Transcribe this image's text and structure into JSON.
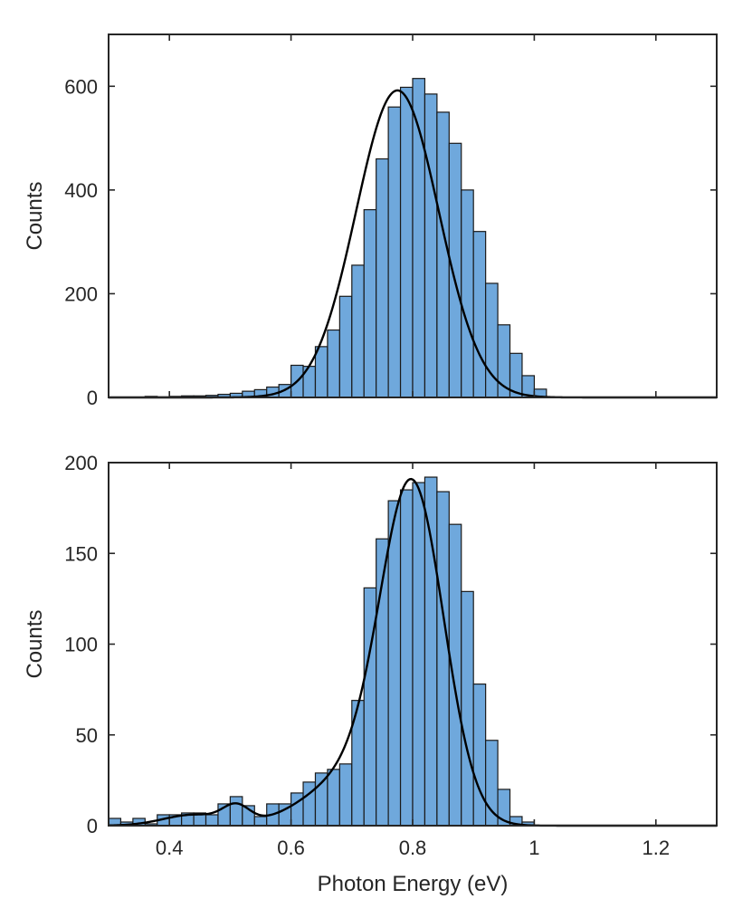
{
  "colors": {
    "bar_fill": "#6fa8dc",
    "bar_edge": "#1a1a1a",
    "fit_line": "#000000",
    "axis": "#262626"
  },
  "chart_data": [
    {
      "type": "bar",
      "subtype": "histogram-with-fit",
      "xlabel": "",
      "ylabel": "Counts",
      "xlim": [
        0.3,
        1.3
      ],
      "ylim": [
        0,
        700
      ],
      "xticks": [
        0.4,
        0.6,
        0.8,
        1.0,
        1.2
      ],
      "xtick_labels": [],
      "yticks": [
        0,
        200,
        400,
        600
      ],
      "ytick_labels": [
        "0",
        "200",
        "400",
        "600"
      ],
      "bin_width": 0.02,
      "bin_left_edges": [
        0.36,
        0.38,
        0.4,
        0.42,
        0.44,
        0.46,
        0.48,
        0.5,
        0.52,
        0.54,
        0.56,
        0.58,
        0.6,
        0.62,
        0.64,
        0.66,
        0.68,
        0.7,
        0.72,
        0.74,
        0.76,
        0.78,
        0.8,
        0.82,
        0.84,
        0.86,
        0.88,
        0.9,
        0.92,
        0.94,
        0.96,
        0.98,
        1.0
      ],
      "values": [
        2,
        1,
        2,
        3,
        3,
        4,
        6,
        8,
        12,
        15,
        20,
        25,
        62,
        60,
        98,
        130,
        195,
        255,
        362,
        460,
        560,
        598,
        615,
        585,
        550,
        490,
        400,
        320,
        220,
        140,
        85,
        42,
        16
      ],
      "fit": {
        "type": "gaussian",
        "amplitude": 592,
        "center": 0.775,
        "sigma": 0.068
      },
      "grid": false,
      "legend": "none"
    },
    {
      "type": "bar",
      "subtype": "histogram-with-fit",
      "xlabel": "Photon Energy (eV)",
      "ylabel": "Counts",
      "xlim": [
        0.3,
        1.3
      ],
      "ylim": [
        0,
        200
      ],
      "xticks": [
        0.4,
        0.6,
        0.8,
        1.0,
        1.2
      ],
      "xtick_labels": [
        "0.4",
        "0.6",
        "0.8",
        "1",
        "1.2"
      ],
      "yticks": [
        0,
        50,
        100,
        150,
        200
      ],
      "ytick_labels": [
        "0",
        "50",
        "100",
        "150",
        "200"
      ],
      "bin_width": 0.02,
      "bin_left_edges": [
        0.3,
        0.32,
        0.34,
        0.36,
        0.38,
        0.4,
        0.42,
        0.44,
        0.46,
        0.48,
        0.5,
        0.52,
        0.54,
        0.56,
        0.58,
        0.6,
        0.62,
        0.64,
        0.66,
        0.68,
        0.7,
        0.72,
        0.74,
        0.76,
        0.78,
        0.8,
        0.82,
        0.84,
        0.86,
        0.88,
        0.9,
        0.92,
        0.94,
        0.96,
        0.98
      ],
      "values": [
        4,
        2,
        4,
        1,
        6,
        6,
        7,
        7,
        6,
        12,
        16,
        11,
        5,
        12,
        12,
        18,
        24,
        29,
        31,
        34,
        69,
        131,
        158,
        179,
        185,
        189,
        192,
        184,
        166,
        129,
        78,
        47,
        20,
        5,
        2
      ],
      "fit": {
        "type": "gaussian-sum",
        "components": [
          {
            "amplitude": 180,
            "center": 0.8,
            "sigma": 0.052
          },
          {
            "amplitude": 26,
            "center": 0.7,
            "sigma": 0.075
          },
          {
            "amplitude": 9,
            "center": 0.51,
            "sigma": 0.022
          },
          {
            "amplitude": 6,
            "center": 0.44,
            "sigma": 0.05
          }
        ]
      },
      "grid": false,
      "legend": "none"
    }
  ]
}
